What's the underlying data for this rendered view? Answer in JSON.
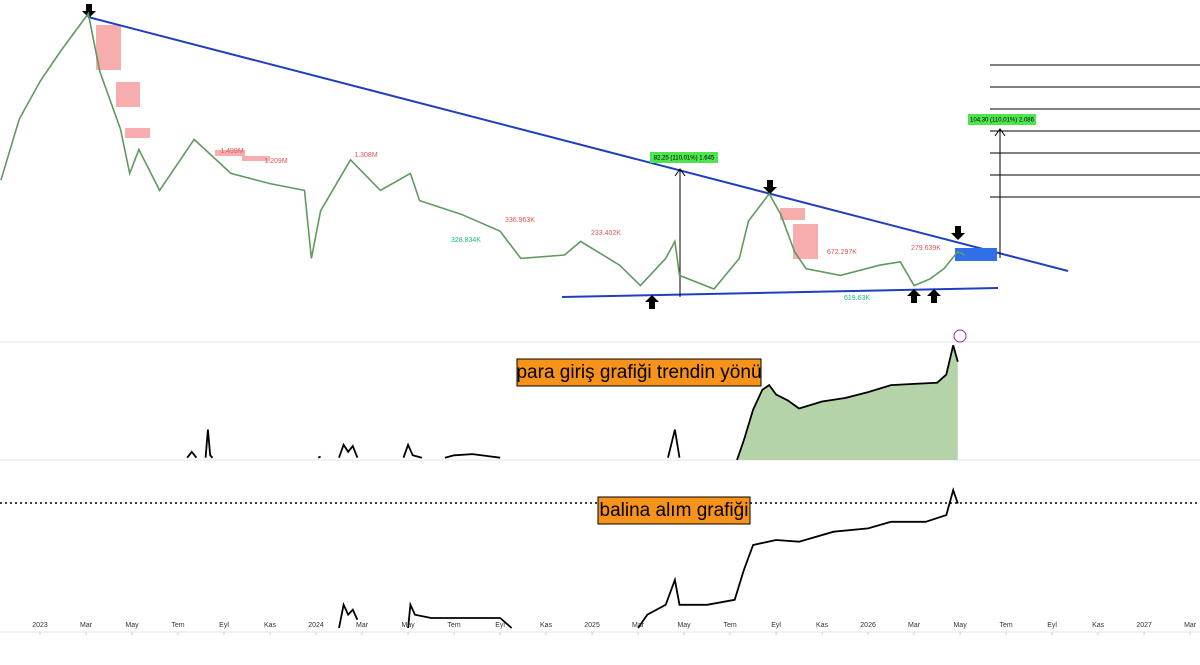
{
  "chart_data": [
    {
      "type": "line",
      "annotations": [
        "1.499M",
        "1.209M",
        "1.308M",
        "328.834K",
        "336.963K",
        "233.402K",
        "672.297K",
        "279.639K",
        "619.63K",
        "82,25 (110,01%) 1.645",
        "104,30 (110,01%) 2.086"
      ],
      "series": [
        {
          "color": "#5f9a5f",
          "x": [
            -1.7,
            -0.9,
            0,
            0.9,
            2.1,
            2.6,
            3.5,
            3.9,
            4.3,
            5.2,
            6.7,
            8.3,
            10,
            11.5,
            11.8,
            12.2,
            13.5,
            14.8,
            16.1,
            16.5,
            18.3,
            20,
            20.9,
            22.8,
            23.5,
            25.2,
            26.1,
            27.2,
            27.6,
            27.8,
            29.3,
            30.4,
            30.8,
            31.7,
            32.2,
            32.8,
            33.3,
            34.8,
            36.5,
            37.4,
            38,
            38.7,
            39.3,
            39.9,
            40.2
          ],
          "values": [
            47,
            65,
            76,
            85,
            96,
            79,
            62,
            49,
            56,
            44,
            59,
            49,
            46,
            44,
            24,
            38,
            53,
            44,
            49,
            41,
            37,
            32,
            24,
            25,
            29,
            22,
            16,
            24,
            29,
            19,
            15,
            24,
            35,
            43,
            37,
            26,
            21,
            19,
            22,
            23,
            16,
            18,
            21,
            26,
            25
          ]
        }
      ],
      "ylim": [
        0,
        100
      ]
    },
    {
      "type": "area",
      "annotation": "para giriş grafiği trendin yönü",
      "series": [
        {
          "color": "#000000",
          "fill": "#b5d3a8",
          "x": [
            6.4,
            6.6,
            6.8,
            null,
            7.2,
            7.3,
            7.4,
            7.5,
            null,
            12.1,
            12.2,
            null,
            13.0,
            13.2,
            13.4,
            13.6,
            13.8,
            null,
            15.8,
            16.0,
            16.2,
            16.6,
            null,
            17.6,
            18.0,
            18.8,
            19.6,
            20.0,
            null,
            27.3,
            27.6,
            27.8,
            null,
            30.3,
            30.6,
            31.0,
            31.4,
            31.7,
            32.0,
            32.5,
            33.0,
            34.0,
            35.0,
            36.0,
            37.0,
            38.0,
            39.0,
            39.4,
            39.7,
            39.9
          ],
          "values": [
            2,
            7,
            2,
            null,
            2,
            26,
            4,
            2,
            null,
            2,
            3,
            null,
            2,
            13,
            7,
            12,
            2,
            null,
            2,
            13,
            4,
            2,
            null,
            2,
            4,
            5,
            3,
            2,
            null,
            2,
            26,
            2,
            null,
            0,
            17,
            43,
            60,
            64,
            56,
            51,
            44,
            50,
            53,
            58,
            64,
            65,
            66,
            73,
            98,
            84
          ]
        }
      ],
      "ylim": [
        0,
        100
      ]
    },
    {
      "type": "line",
      "annotation": "balina alım grafiği",
      "series": [
        {
          "color": "#000000",
          "x": [
            13.0,
            13.2,
            13.4,
            13.6,
            13.8,
            null,
            16.0,
            16.1,
            16.3,
            17,
            18.5,
            20,
            20.5,
            null,
            26,
            26.4,
            27.2,
            27.6,
            27.8,
            29,
            30.2,
            30.6,
            31.0,
            32.0,
            33.0,
            34.5,
            36.0,
            37.0,
            38.5,
            39.4,
            39.7,
            39.9
          ],
          "values": [
            0,
            14,
            8,
            11,
            5,
            null,
            0,
            14,
            8,
            6,
            6,
            6,
            0,
            null,
            0,
            8,
            14,
            29,
            14,
            14,
            17,
            35,
            50,
            53,
            52,
            58,
            60,
            64,
            64,
            68,
            83,
            75
          ]
        }
      ],
      "ylim": [
        0,
        100
      ],
      "xlim": [
        -1.74,
        50.43
      ],
      "xticks": [
        {
          "value": 0,
          "label": "2023"
        },
        {
          "value": 2,
          "label": "Mar"
        },
        {
          "value": 4,
          "label": "May"
        },
        {
          "value": 6,
          "label": "Tem"
        },
        {
          "value": 8,
          "label": "Eyl"
        },
        {
          "value": 10,
          "label": "Kas"
        },
        {
          "value": 12,
          "label": "2024"
        },
        {
          "value": 14,
          "label": "Mar"
        },
        {
          "value": 16,
          "label": "May"
        },
        {
          "value": 18,
          "label": "Tem"
        },
        {
          "value": 20,
          "label": "Eyl"
        },
        {
          "value": 22,
          "label": "Kas"
        },
        {
          "value": 24,
          "label": "2025"
        },
        {
          "value": 26,
          "label": "Mar"
        },
        {
          "value": 28,
          "label": "May"
        },
        {
          "value": 30,
          "label": "Tem"
        },
        {
          "value": 32,
          "label": "Eyl"
        },
        {
          "value": 34,
          "label": "Kas"
        },
        {
          "value": 36,
          "label": "2026"
        },
        {
          "value": 38,
          "label": "Mar"
        },
        {
          "value": 40,
          "label": "May"
        },
        {
          "value": 42,
          "label": "Tem"
        },
        {
          "value": 44,
          "label": "Eyl"
        },
        {
          "value": 46,
          "label": "Kas"
        },
        {
          "value": 48,
          "label": "2027"
        },
        {
          "value": 50,
          "label": "Mar"
        }
      ]
    }
  ]
}
